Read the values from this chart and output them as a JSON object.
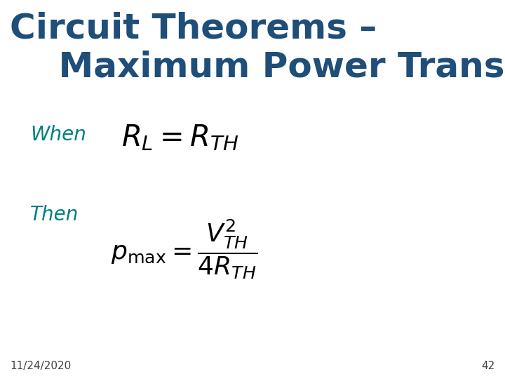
{
  "background_color": "#ffffff",
  "title_line1": "Circuit Theorems –",
  "title_line2": "    Maximum Power Transfer",
  "title_color": "#1F4E79",
  "title_fontsize": 36,
  "when_label": "When",
  "then_label": "Then",
  "label_color": "#008080",
  "label_fontsize": 20,
  "formula1": "$R_L = R_{TH}$",
  "formula_color": "#000000",
  "formula1_fontsize": 30,
  "formula2_fontsize": 26,
  "footer_date": "11/24/2020",
  "footer_page": "42",
  "footer_color": "#404040",
  "footer_fontsize": 11
}
